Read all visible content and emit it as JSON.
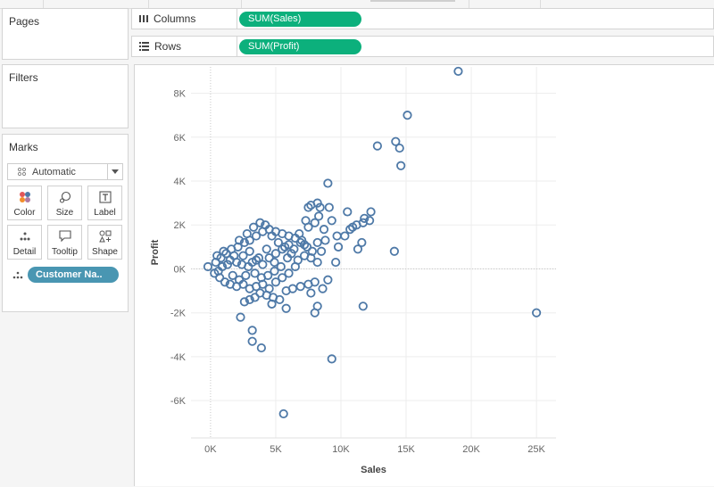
{
  "cards": {
    "pages": "Pages",
    "filters": "Filters",
    "marks": "Marks"
  },
  "shelves": {
    "columns": {
      "label": "Columns",
      "pill": "SUM(Sales)"
    },
    "rows": {
      "label": "Rows",
      "pill": "SUM(Profit)"
    }
  },
  "marks": {
    "type": "Automatic",
    "buttons": [
      "Color",
      "Size",
      "Label",
      "Detail",
      "Tooltip",
      "Shape"
    ],
    "detail_field": "Customer Na..",
    "mark_color": "#4e79a7"
  },
  "chart_data": {
    "type": "scatter",
    "xlabel": "Sales",
    "ylabel": "Profit",
    "xlim": [
      -1500,
      26500
    ],
    "ylim": [
      -7700,
      9200
    ],
    "xticks": [
      0,
      5000,
      10000,
      15000,
      20000,
      25000
    ],
    "xtick_labels": [
      "0K",
      "5K",
      "10K",
      "15K",
      "20K",
      "25K"
    ],
    "yticks": [
      -6000,
      -4000,
      -2000,
      0,
      2000,
      4000,
      6000,
      8000
    ],
    "ytick_labels": [
      "-6K",
      "-4K",
      "-2K",
      "0K",
      "2K",
      "4K",
      "6K",
      "8K"
    ],
    "grid": true,
    "points": [
      [
        19000,
        9000
      ],
      [
        15100,
        7000
      ],
      [
        12800,
        5600
      ],
      [
        14200,
        5800
      ],
      [
        14500,
        5500
      ],
      [
        14600,
        4700
      ],
      [
        9000,
        3900
      ],
      [
        7500,
        2800
      ],
      [
        7700,
        2900
      ],
      [
        8200,
        3000
      ],
      [
        8400,
        2800
      ],
      [
        9100,
        2800
      ],
      [
        12300,
        2600
      ],
      [
        10500,
        2600
      ],
      [
        8300,
        2400
      ],
      [
        7300,
        2200
      ],
      [
        8000,
        2100
      ],
      [
        9300,
        2200
      ],
      [
        10900,
        1900
      ],
      [
        11800,
        2300
      ],
      [
        12200,
        2200
      ],
      [
        11700,
        2100
      ],
      [
        11200,
        2000
      ],
      [
        10700,
        1800
      ],
      [
        7500,
        1900
      ],
      [
        8700,
        1800
      ],
      [
        9700,
        1500
      ],
      [
        10300,
        1500
      ],
      [
        11600,
        1200
      ],
      [
        11300,
        900
      ],
      [
        14100,
        800
      ],
      [
        9600,
        300
      ],
      [
        8500,
        800
      ],
      [
        7200,
        1100
      ],
      [
        6800,
        1600
      ],
      [
        8200,
        1200
      ],
      [
        -200,
        100
      ],
      [
        400,
        300
      ],
      [
        800,
        500
      ],
      [
        1200,
        700
      ],
      [
        1600,
        900
      ],
      [
        2100,
        1000
      ],
      [
        2600,
        1200
      ],
      [
        3000,
        1300
      ],
      [
        3500,
        1500
      ],
      [
        4000,
        1700
      ],
      [
        4500,
        1800
      ],
      [
        5000,
        1700
      ],
      [
        5500,
        1600
      ],
      [
        6000,
        1500
      ],
      [
        6500,
        1400
      ],
      [
        7000,
        1300
      ],
      [
        300,
        -200
      ],
      [
        700,
        -400
      ],
      [
        1100,
        -600
      ],
      [
        1500,
        -700
      ],
      [
        2000,
        -800
      ],
      [
        2500,
        -700
      ],
      [
        3000,
        -900
      ],
      [
        3500,
        -800
      ],
      [
        4000,
        -700
      ],
      [
        4500,
        -900
      ],
      [
        5000,
        -600
      ],
      [
        5500,
        -400
      ],
      [
        6000,
        -200
      ],
      [
        6500,
        100
      ],
      [
        500,
        600
      ],
      [
        1000,
        800
      ],
      [
        1500,
        400
      ],
      [
        2000,
        300
      ],
      [
        2500,
        600
      ],
      [
        3000,
        800
      ],
      [
        3500,
        400
      ],
      [
        4000,
        200
      ],
      [
        4500,
        500
      ],
      [
        5000,
        700
      ],
      [
        5500,
        900
      ],
      [
        6000,
        1100
      ],
      [
        2200,
        1300
      ],
      [
        2800,
        1600
      ],
      [
        3300,
        1900
      ],
      [
        3800,
        2100
      ],
      [
        4200,
        2000
      ],
      [
        4700,
        1500
      ],
      [
        5200,
        1200
      ],
      [
        5700,
        1000
      ],
      [
        6200,
        700
      ],
      [
        6700,
        400
      ],
      [
        7200,
        600
      ],
      [
        7700,
        500
      ],
      [
        8200,
        300
      ],
      [
        9000,
        -500
      ],
      [
        8000,
        -600
      ],
      [
        7500,
        -700
      ],
      [
        6300,
        -900
      ],
      [
        5800,
        -1000
      ],
      [
        5300,
        -1400
      ],
      [
        4800,
        -1300
      ],
      [
        4300,
        -1200
      ],
      [
        3800,
        -1100
      ],
      [
        3400,
        -1300
      ],
      [
        3000,
        -1400
      ],
      [
        2600,
        -1500
      ],
      [
        4700,
        -1600
      ],
      [
        5800,
        -1800
      ],
      [
        8200,
        -1700
      ],
      [
        8000,
        -2000
      ],
      [
        11700,
        -1700
      ],
      [
        25000,
        -2000
      ],
      [
        2300,
        -2200
      ],
      [
        3200,
        -2800
      ],
      [
        3200,
        -3300
      ],
      [
        3900,
        -3600
      ],
      [
        9300,
        -4100
      ],
      [
        5600,
        -6600
      ],
      [
        6900,
        -800
      ],
      [
        7700,
        -1100
      ],
      [
        8600,
        -900
      ],
      [
        3700,
        500
      ],
      [
        4300,
        900
      ],
      [
        4900,
        300
      ],
      [
        5400,
        100
      ],
      [
        5900,
        500
      ],
      [
        6400,
        900
      ],
      [
        6900,
        1200
      ],
      [
        7400,
        1000
      ],
      [
        1800,
        600
      ],
      [
        2400,
        200
      ],
      [
        2900,
        100
      ],
      [
        3400,
        -200
      ],
      [
        3900,
        -400
      ],
      [
        4400,
        -300
      ],
      [
        4900,
        -100
      ],
      [
        1300,
        200
      ],
      [
        900,
        100
      ],
      [
        600,
        -100
      ],
      [
        1700,
        -300
      ],
      [
        2200,
        -500
      ],
      [
        2700,
        -300
      ],
      [
        3200,
        300
      ],
      [
        7800,
        800
      ],
      [
        8800,
        1300
      ],
      [
        9800,
        1000
      ]
    ]
  }
}
